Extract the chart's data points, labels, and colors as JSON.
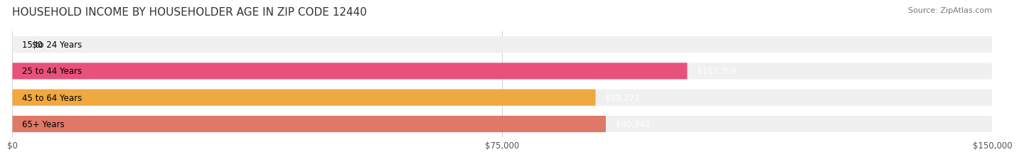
{
  "title": "HOUSEHOLD INCOME BY HOUSEHOLDER AGE IN ZIP CODE 12440",
  "source": "Source: ZipAtlas.com",
  "categories": [
    "15 to 24 Years",
    "25 to 44 Years",
    "45 to 64 Years",
    "65+ Years"
  ],
  "values": [
    0,
    103309,
    89271,
    90848
  ],
  "bar_colors": [
    "#a0a0d0",
    "#e8527a",
    "#f0a840",
    "#e07868"
  ],
  "bar_bg_color": "#f0f0f0",
  "value_labels": [
    "$0",
    "$103,309",
    "$89,271",
    "$90,848"
  ],
  "xlim": [
    0,
    150000
  ],
  "xtick_values": [
    0,
    75000,
    150000
  ],
  "xtick_labels": [
    "$0",
    "$75,000",
    "$150,000"
  ],
  "title_fontsize": 11,
  "source_fontsize": 8,
  "label_fontsize": 8.5,
  "value_fontsize": 8.5,
  "background_color": "#ffffff"
}
